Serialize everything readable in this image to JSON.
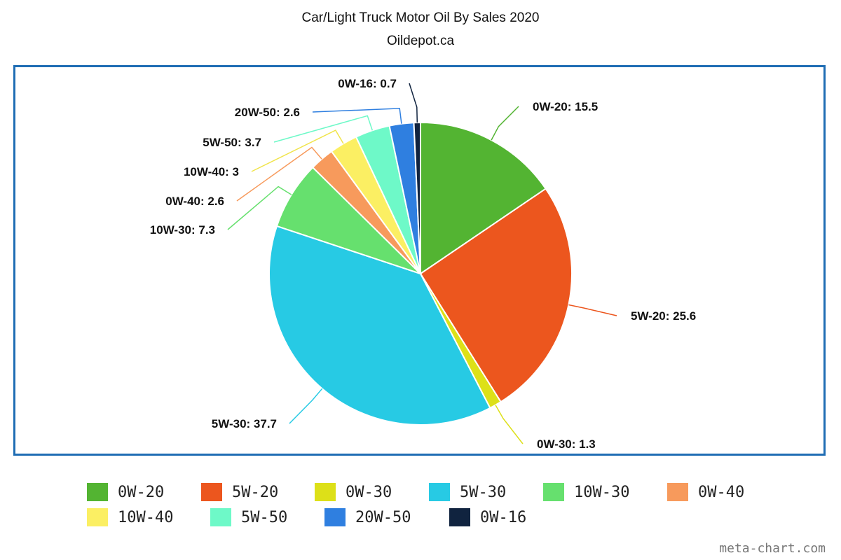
{
  "chart_data": {
    "type": "pie",
    "title": "Car/Light Truck Motor Oil By Sales 2020",
    "subtitle": "Oildepot.ca",
    "slices": [
      {
        "label": "0W-20",
        "value": 15.5,
        "color": "#53b432"
      },
      {
        "label": "5W-20",
        "value": 25.6,
        "color": "#ec561e"
      },
      {
        "label": "0W-30",
        "value": 1.3,
        "color": "#dde018"
      },
      {
        "label": "5W-30",
        "value": 37.7,
        "color": "#27cae4"
      },
      {
        "label": "10W-30",
        "value": 7.3,
        "color": "#66e06e"
      },
      {
        "label": "0W-40",
        "value": 2.6,
        "color": "#f79a5c"
      },
      {
        "label": "10W-40",
        "value": 3,
        "color": "#fbef63"
      },
      {
        "label": "5W-50",
        "value": 3.7,
        "color": "#6ef9c8"
      },
      {
        "label": "20W-50",
        "value": 2.6,
        "color": "#2f7fe0"
      },
      {
        "label": "0W-16",
        "value": 0.7,
        "color": "#10233f"
      }
    ],
    "data_label_format": "{label}: {value}",
    "legend_position": "bottom"
  },
  "legend": {
    "items": [
      {
        "label": "0W-20",
        "color": "#53b432"
      },
      {
        "label": "5W-20",
        "color": "#ec561e"
      },
      {
        "label": "0W-30",
        "color": "#dde018"
      },
      {
        "label": "5W-30",
        "color": "#27cae4"
      },
      {
        "label": "10W-30",
        "color": "#66e06e"
      },
      {
        "label": "0W-40",
        "color": "#f79a5c"
      },
      {
        "label": "10W-40",
        "color": "#fbef63"
      },
      {
        "label": "5W-50",
        "color": "#6ef9c8"
      },
      {
        "label": "20W-50",
        "color": "#2f7fe0"
      },
      {
        "label": "0W-16",
        "color": "#10233f"
      }
    ]
  },
  "watermark": "meta-chart.com",
  "colors": {
    "frame": "#1f6db4"
  }
}
